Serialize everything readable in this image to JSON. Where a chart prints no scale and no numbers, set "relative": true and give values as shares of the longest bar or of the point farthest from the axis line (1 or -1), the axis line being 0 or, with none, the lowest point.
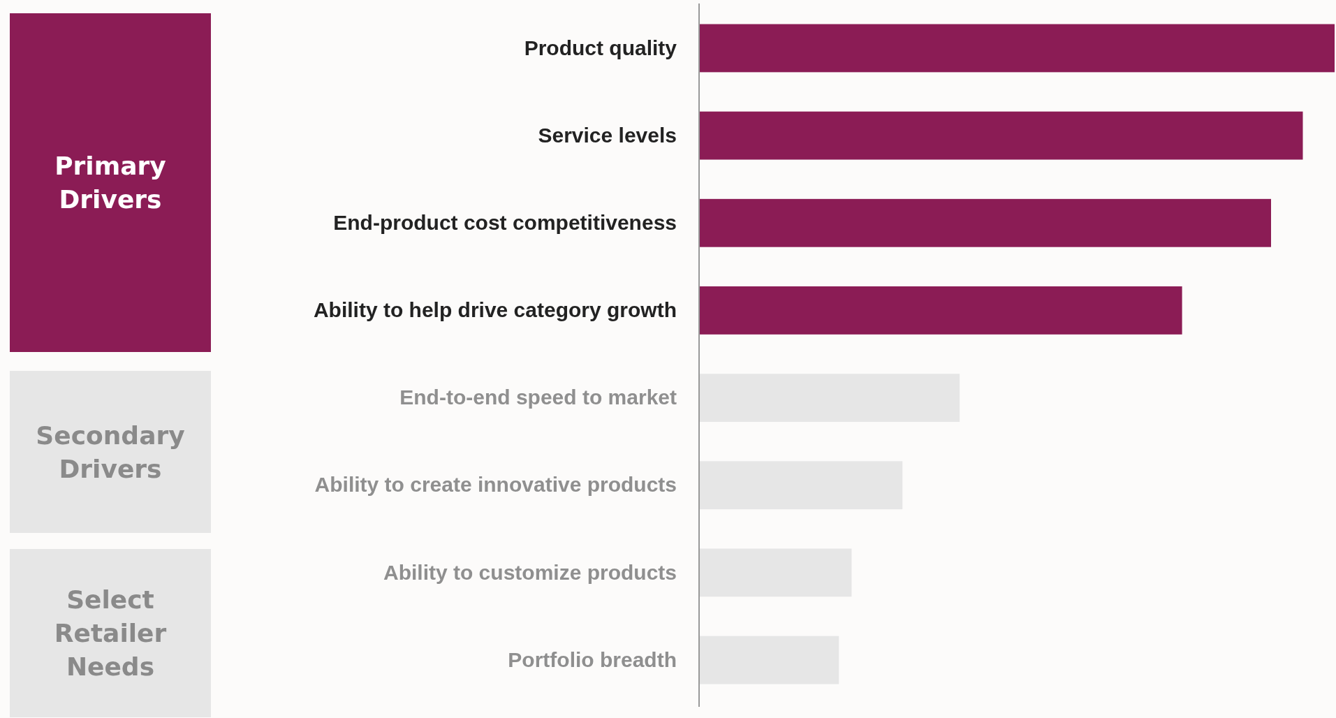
{
  "chart_data": {
    "type": "bar",
    "orientation": "horizontal",
    "relative": true,
    "categories": [
      "Product quality",
      "Service levels",
      "End-product cost competitiveness",
      "Ability to help drive category growth",
      "End-to-end speed to market",
      "Ability to create innovative products",
      "Ability to customize products",
      "Portfolio breadth"
    ],
    "values": [
      1,
      0.95,
      0.9,
      0.76,
      0.41,
      0.32,
      0.24,
      0.22
    ],
    "colors": [
      "#8b1c55",
      "#8b1c55",
      "#8b1c55",
      "#8b1c55",
      "#e6e6e6",
      "#e6e6e6",
      "#e6e6e6",
      "#e6e6e6"
    ],
    "annotations": [
      "Primary Drivers",
      "Secondary Drivers",
      "Select Retailer Needs"
    ]
  }
}
